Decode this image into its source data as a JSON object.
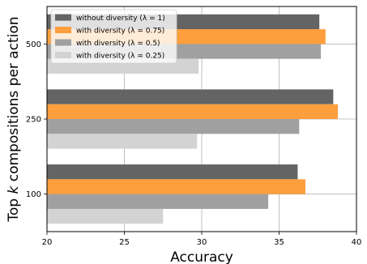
{
  "chart_data": {
    "type": "bar",
    "orientation": "horizontal",
    "categories": [
      "100",
      "250",
      "500"
    ],
    "series": [
      {
        "name": "without diversity (λ = 1)",
        "color": "#646464",
        "values": [
          36.2,
          38.5,
          37.6
        ]
      },
      {
        "name": "with diversity (λ = 0.75)",
        "color": "#ff9e3d",
        "values": [
          36.7,
          38.8,
          38.0
        ]
      },
      {
        "name": "with diversity (λ = 0.5)",
        "color": "#a0a0a0",
        "values": [
          34.3,
          36.3,
          37.7
        ]
      },
      {
        "name": "with diversity (λ = 0.25)",
        "color": "#d3d3d3",
        "values": [
          27.5,
          29.7,
          29.8
        ]
      }
    ],
    "xlabel": "Accuracy",
    "ylabel_prefix": "Top ",
    "ylabel_k": "k",
    "ylabel_suffix": " compositions per action",
    "xlim": [
      20,
      40
    ],
    "xticks": [
      20,
      25,
      30,
      35,
      40
    ],
    "grid": true,
    "legend_position": "upper-left"
  }
}
